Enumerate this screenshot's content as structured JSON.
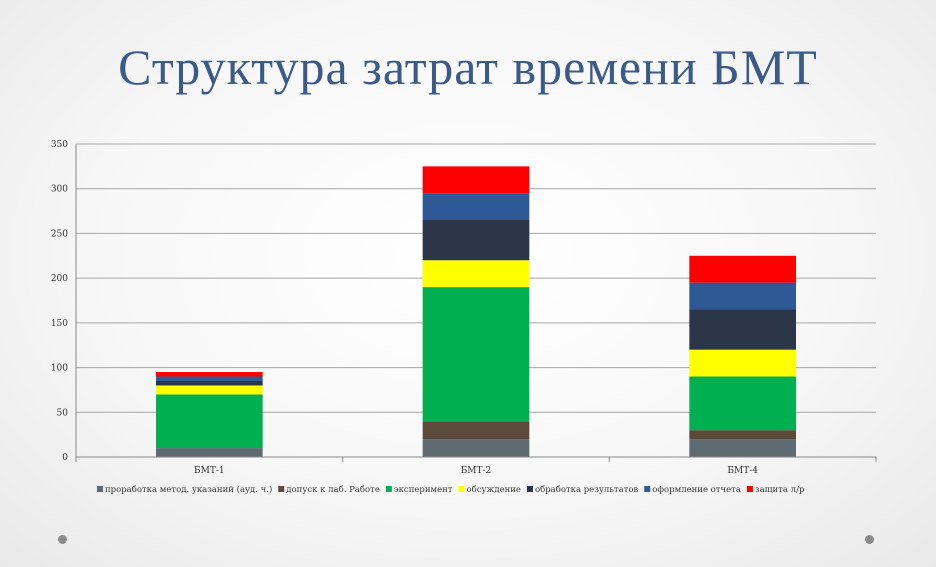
{
  "title": "Структура затрат времени БМТ",
  "colors": {
    "title": "#3a5a8a",
    "series": [
      "#5f6b73",
      "#5c4a3a",
      "#00b050",
      "#ffff00",
      "#2b3648",
      "#2e5896",
      "#ff0000"
    ]
  },
  "chart_data": {
    "type": "bar",
    "stacked": true,
    "categories": [
      "БМТ-1",
      "БМТ-2",
      "БМТ-4"
    ],
    "series": [
      {
        "name": "проработка метод. указаний (ауд. ч.)",
        "values": [
          10,
          20,
          20
        ]
      },
      {
        "name": "допуск к лаб. Работе",
        "values": [
          0,
          20,
          10
        ]
      },
      {
        "name": "эксперимент",
        "values": [
          60,
          150,
          60
        ]
      },
      {
        "name": "обсуждение",
        "values": [
          10,
          30,
          30
        ]
      },
      {
        "name": "обработка результатов",
        "values": [
          5,
          45,
          45
        ]
      },
      {
        "name": "оформление отчета",
        "values": [
          5,
          30,
          30
        ]
      },
      {
        "name": "защита л/р",
        "values": [
          5,
          30,
          30
        ]
      }
    ],
    "yticks": [
      "0",
      "50",
      "100",
      "150",
      "200",
      "250",
      "300",
      "350"
    ],
    "ylim": [
      0,
      350
    ],
    "grid": true,
    "legend_position": "bottom"
  }
}
